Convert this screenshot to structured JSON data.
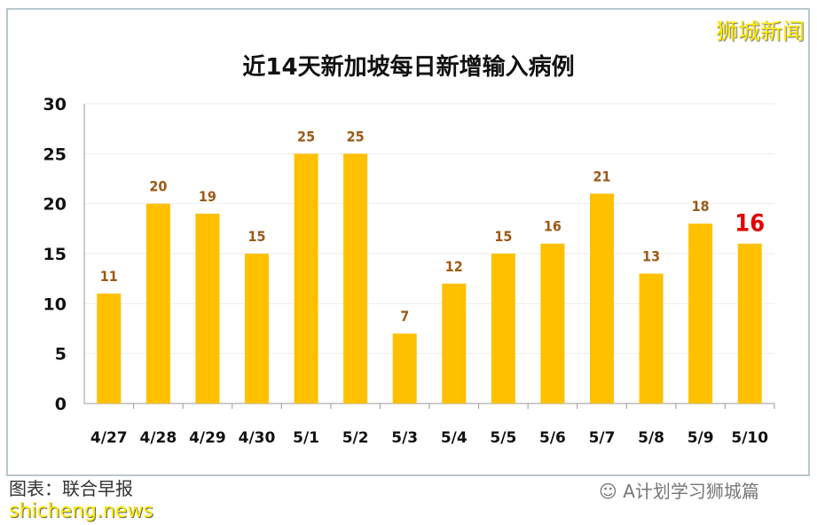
{
  "watermark": "狮城新闻",
  "source": "图表：联合早报",
  "site": "shicheng.news",
  "wechat": "A计划学习狮城篇",
  "chart_data": {
    "type": "bar",
    "title": "近14天新加坡每日新增输入病例",
    "categories": [
      "4/27",
      "4/28",
      "4/29",
      "4/30",
      "5/1",
      "5/2",
      "5/3",
      "5/4",
      "5/5",
      "5/6",
      "5/7",
      "5/8",
      "5/9",
      "5/10"
    ],
    "values": [
      11,
      20,
      19,
      15,
      25,
      25,
      7,
      12,
      15,
      16,
      21,
      13,
      18,
      16
    ],
    "ylim": [
      0,
      30
    ],
    "yticks": [
      0,
      5,
      10,
      15,
      20,
      25,
      30
    ],
    "xlabel": "",
    "ylabel": "",
    "bar_color": "#ffc000",
    "label_color": "#9c5a16",
    "highlight_label_color": "#e00000"
  }
}
